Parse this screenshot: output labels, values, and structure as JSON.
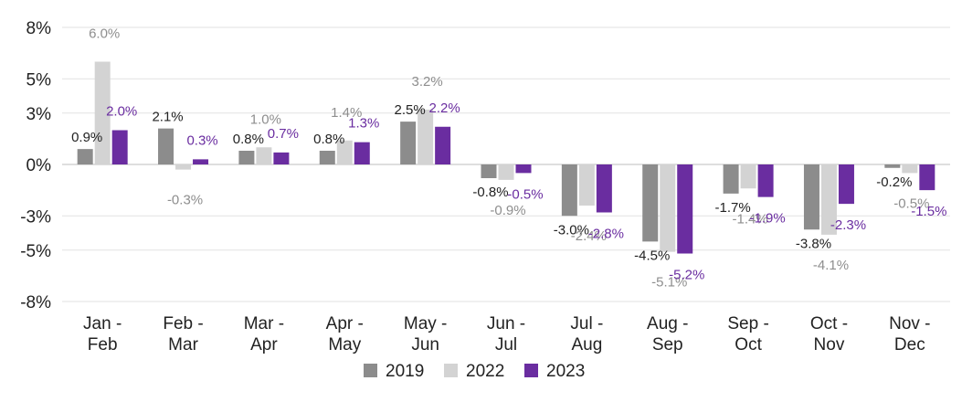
{
  "chart_data": {
    "type": "bar",
    "categories": [
      [
        "Jan -",
        "Feb"
      ],
      [
        "Feb -",
        "Mar"
      ],
      [
        "Mar -",
        "Apr"
      ],
      [
        "Apr -",
        "May"
      ],
      [
        "May -",
        "Jun"
      ],
      [
        "Jun -",
        "Jul"
      ],
      [
        "Jul -",
        "Aug"
      ],
      [
        "Aug -",
        "Sep"
      ],
      [
        "Sep -",
        "Oct"
      ],
      [
        "Oct -",
        "Nov"
      ],
      [
        "Nov -",
        "Dec"
      ]
    ],
    "series": [
      {
        "name": "2019",
        "color": "#8c8c8c",
        "label_color": "#222222",
        "values": [
          0.9,
          2.1,
          0.8,
          0.8,
          2.5,
          -0.8,
          -3.0,
          -4.5,
          -1.7,
          -3.8,
          -0.2
        ]
      },
      {
        "name": "2022",
        "color": "#d3d3d3",
        "label_color": "#8e8e8e",
        "values": [
          6.0,
          -0.3,
          1.0,
          1.4,
          3.2,
          -0.9,
          -2.4,
          -5.1,
          -1.4,
          -4.1,
          -0.5
        ]
      },
      {
        "name": "2023",
        "color": "#6a2da0",
        "label_color": "#6a2da0",
        "values": [
          2.0,
          0.3,
          0.7,
          1.3,
          2.2,
          -0.5,
          -2.8,
          -5.2,
          -1.9,
          -2.3,
          -1.5
        ]
      }
    ],
    "y_ticks": [
      {
        "value": 8,
        "label": "8%"
      },
      {
        "value": 5,
        "label": "5%"
      },
      {
        "value": 3,
        "label": "3%"
      },
      {
        "value": 0,
        "label": "0%"
      },
      {
        "value": -3,
        "label": "-3%"
      },
      {
        "value": -5,
        "label": "-5%"
      },
      {
        "value": -8,
        "label": "-8%"
      }
    ],
    "ylim": [
      -8,
      8
    ],
    "grid": true,
    "legend_position": "bottom-center",
    "title": "",
    "xlabel": "",
    "ylabel": ""
  }
}
